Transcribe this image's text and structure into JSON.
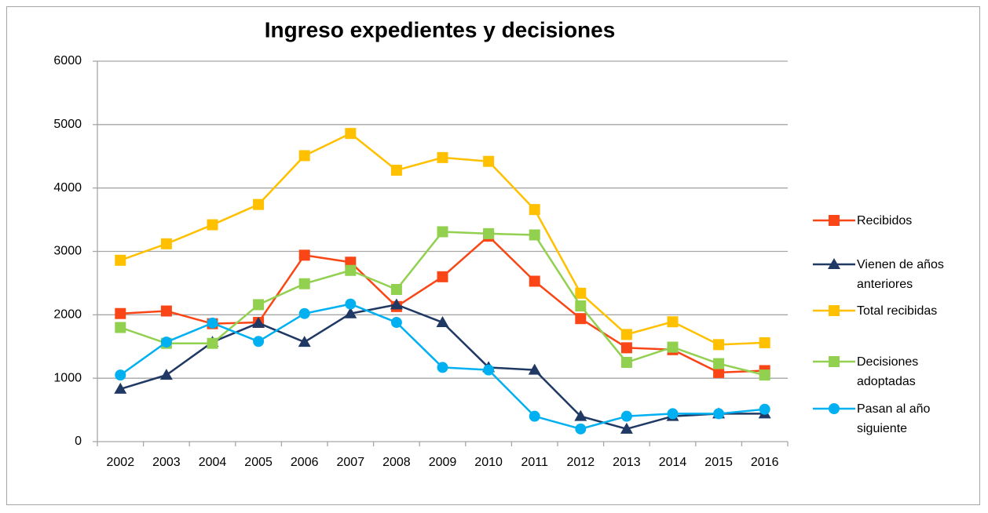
{
  "chart_data": {
    "type": "line",
    "title": "Ingreso expedientes y decisiones",
    "categories": [
      "2002",
      "2003",
      "2004",
      "2005",
      "2006",
      "2007",
      "2008",
      "2009",
      "2010",
      "2011",
      "2012",
      "2013",
      "2014",
      "2015",
      "2016"
    ],
    "series": [
      {
        "name": "Recibidos",
        "color": "#fa4616",
        "marker": "square",
        "values": [
          2020,
          2060,
          1860,
          1880,
          2940,
          2830,
          2130,
          2600,
          3240,
          2530,
          1940,
          1480,
          1450,
          1090,
          1120
        ]
      },
      {
        "name": "Vienen de años anteriores",
        "color": "#203864",
        "marker": "triangle",
        "values": [
          830,
          1050,
          1570,
          1870,
          1570,
          2020,
          2160,
          1880,
          1170,
          1130,
          400,
          200,
          400,
          440,
          440
        ]
      },
      {
        "name": "Total recibidas",
        "color": "#ffc000",
        "marker": "square",
        "values": [
          2860,
          3120,
          3420,
          3740,
          4510,
          4860,
          4280,
          4480,
          4420,
          3660,
          2340,
          1690,
          1890,
          1530,
          1560
        ]
      },
      {
        "name": "Decisiones adoptadas",
        "color": "#92d050",
        "marker": "square",
        "values": [
          1800,
          1550,
          1550,
          2160,
          2490,
          2700,
          2400,
          3310,
          3280,
          3260,
          2140,
          1250,
          1490,
          1230,
          1050
        ]
      },
      {
        "name": "Pasan al año siguiente",
        "color": "#00b0f0",
        "marker": "circle",
        "values": [
          1050,
          1570,
          1870,
          1580,
          2020,
          2170,
          1880,
          1170,
          1130,
          400,
          200,
          400,
          440,
          440,
          510
        ]
      }
    ],
    "ylim": [
      0,
      6000
    ],
    "yticks": [
      0,
      1000,
      2000,
      3000,
      4000,
      5000,
      6000
    ],
    "grid": true,
    "legend": "right"
  }
}
